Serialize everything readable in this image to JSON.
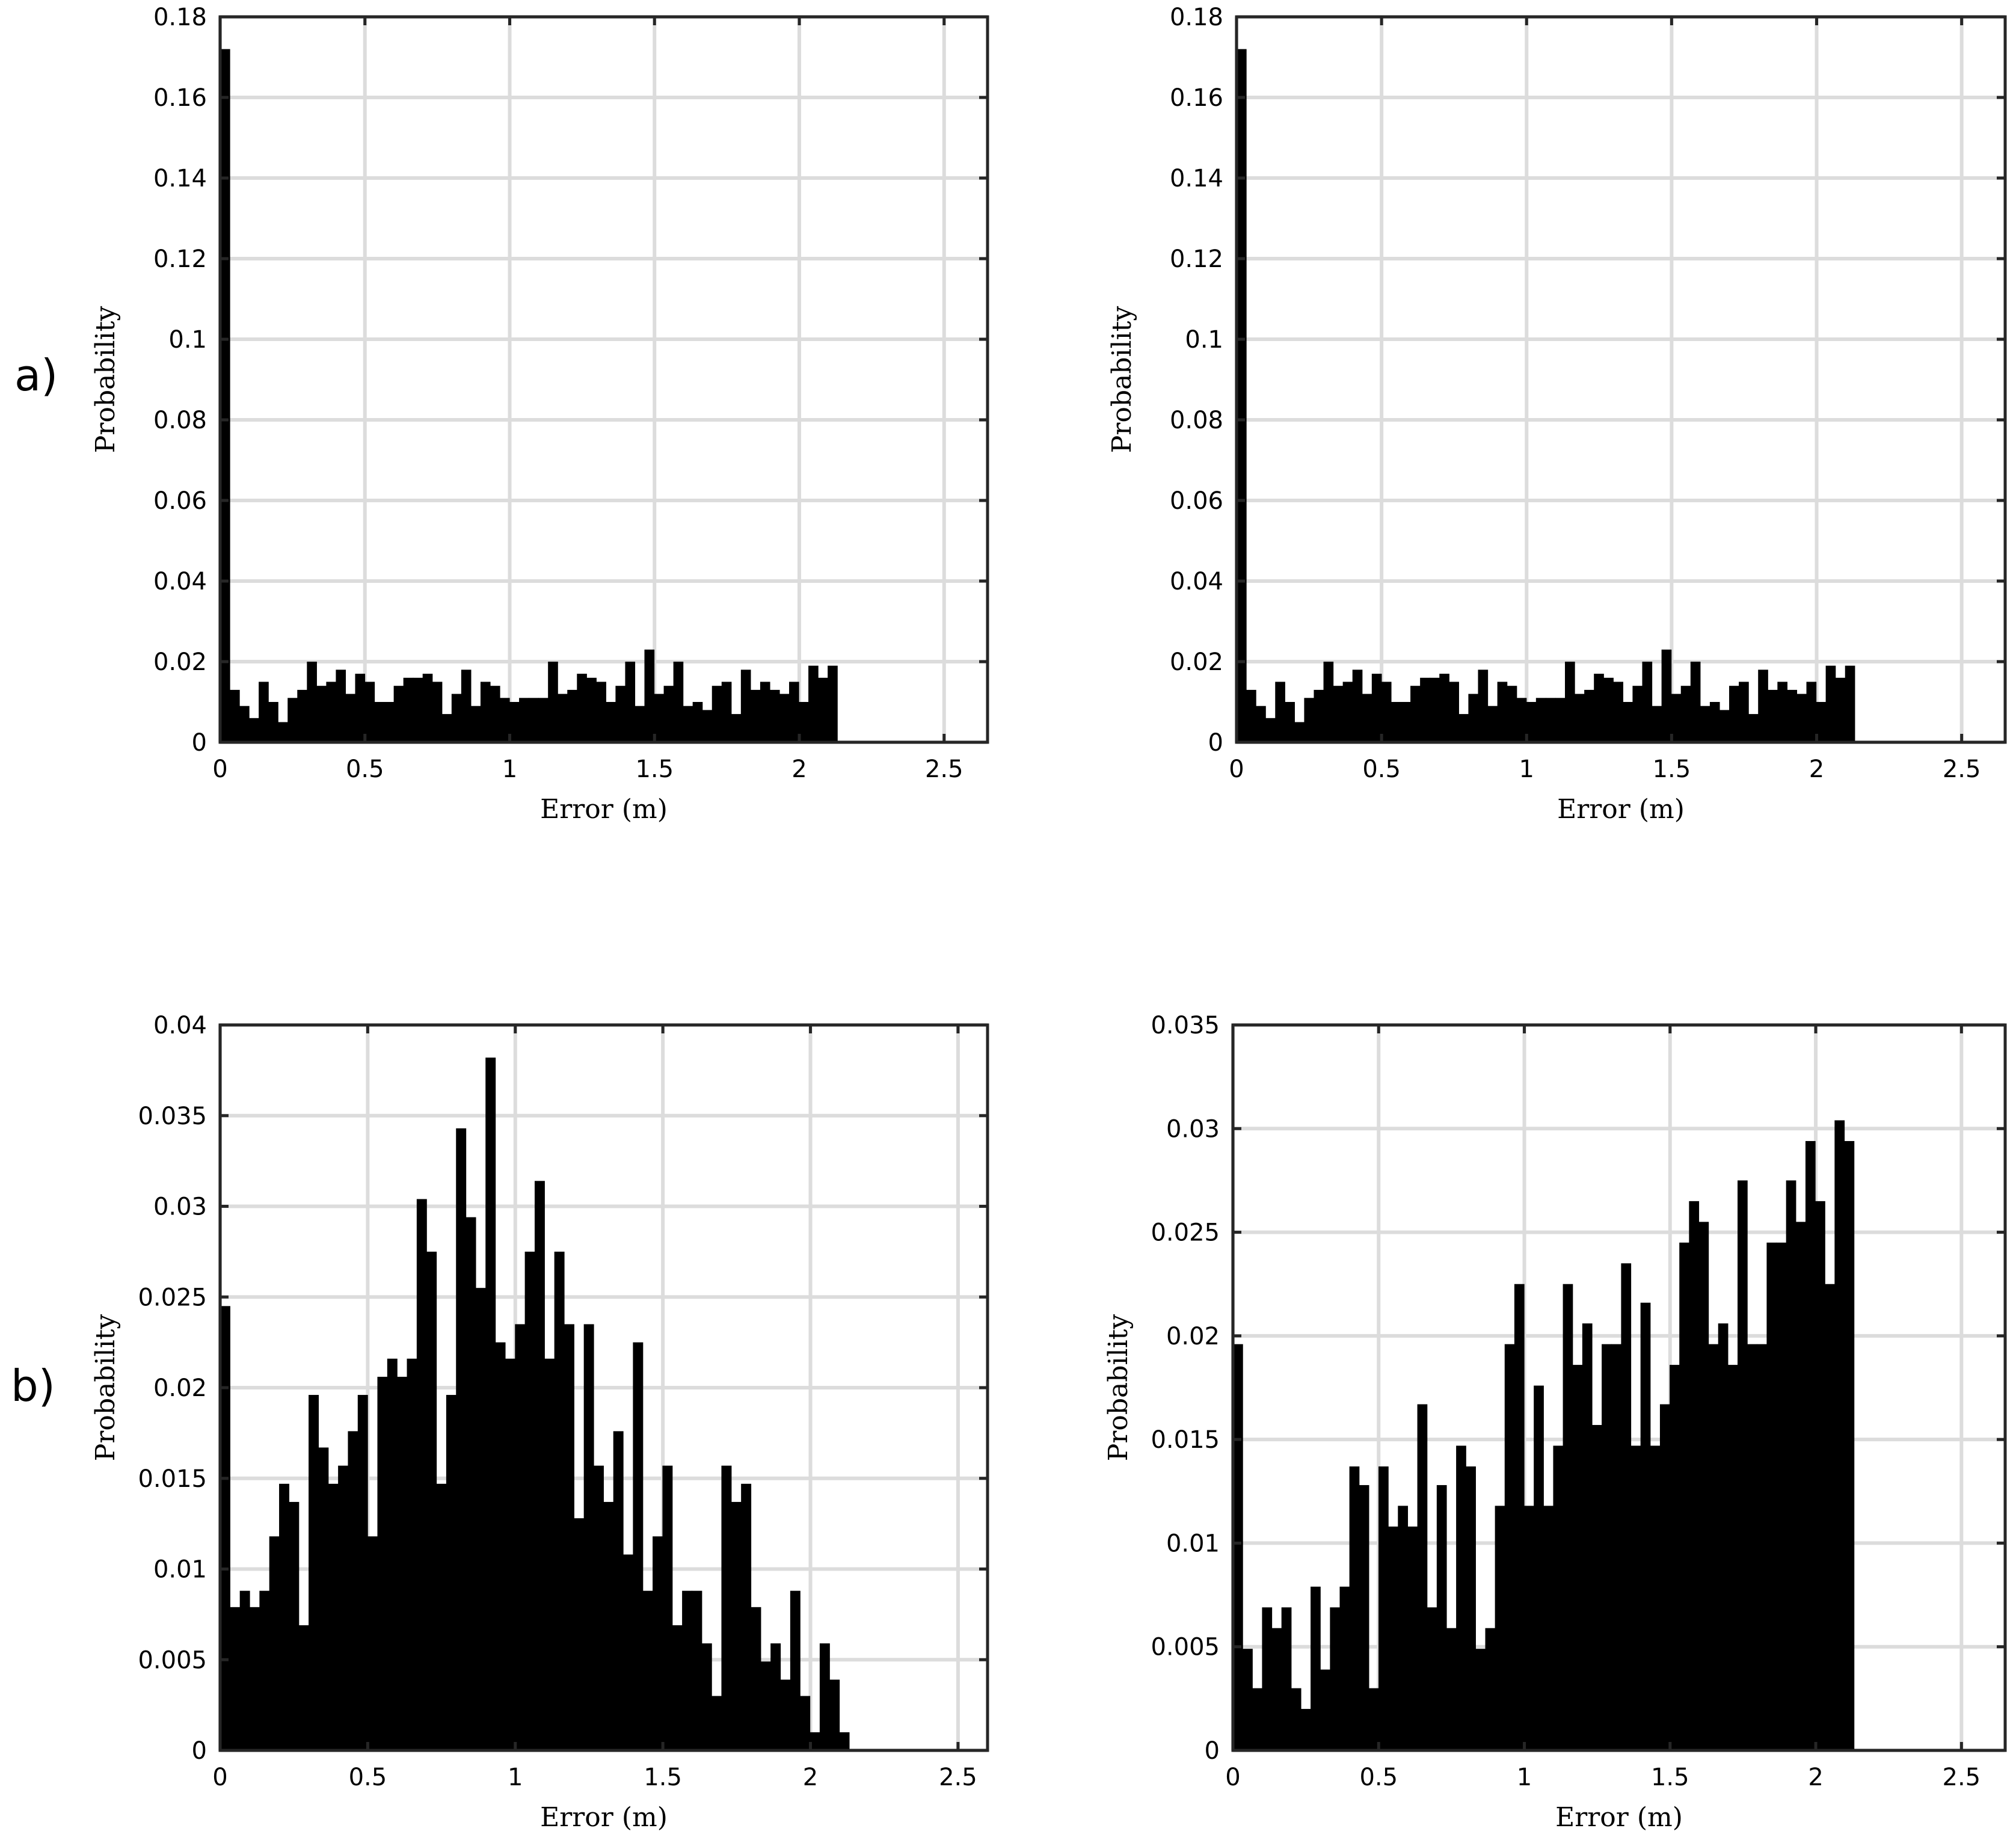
{
  "row_labels": [
    "a)",
    "b)"
  ],
  "chart_data": [
    {
      "type": "bar",
      "row": "a)",
      "column": "left",
      "xlabel": "Error (m)",
      "ylabel": "Probability",
      "xlim": [
        0,
        2.65
      ],
      "ylim": [
        0,
        0.18
      ],
      "xticks": [
        "0",
        "0.5",
        "1",
        "1.5",
        "2",
        "2.5"
      ],
      "yticks": [
        "0",
        "0.02",
        "0.04",
        "0.06",
        "0.08",
        "0.1",
        "0.12",
        "0.14",
        "0.16",
        "0.18"
      ],
      "bin_start": 0.0,
      "bin_width": 0.0333,
      "grid": true,
      "bar_color": "#000000",
      "values": [
        0.172,
        0.013,
        0.009,
        0.006,
        0.015,
        0.01,
        0.005,
        0.011,
        0.013,
        0.02,
        0.014,
        0.015,
        0.018,
        0.012,
        0.017,
        0.015,
        0.01,
        0.01,
        0.014,
        0.016,
        0.016,
        0.017,
        0.015,
        0.007,
        0.012,
        0.018,
        0.009,
        0.015,
        0.014,
        0.011,
        0.01,
        0.011,
        0.011,
        0.011,
        0.02,
        0.012,
        0.013,
        0.017,
        0.016,
        0.015,
        0.01,
        0.014,
        0.02,
        0.009,
        0.023,
        0.012,
        0.014,
        0.02,
        0.009,
        0.01,
        0.008,
        0.014,
        0.015,
        0.007,
        0.018,
        0.013,
        0.015,
        0.013,
        0.012,
        0.015,
        0.01,
        0.019,
        0.016,
        0.019
      ]
    },
    {
      "type": "bar",
      "row": "a)",
      "column": "right",
      "xlabel": "Error (m)",
      "ylabel": "Probability",
      "xlim": [
        0,
        2.65
      ],
      "ylim": [
        0,
        0.18
      ],
      "xticks": [
        "0",
        "0.5",
        "1",
        "1.5",
        "2",
        "2.5"
      ],
      "yticks": [
        "0",
        "0.02",
        "0.04",
        "0.06",
        "0.08",
        "0.1",
        "0.12",
        "0.14",
        "0.16",
        "0.18"
      ],
      "bin_start": 0.0,
      "bin_width": 0.0333,
      "grid": true,
      "bar_color": "#000000",
      "values": [
        0.172,
        0.013,
        0.009,
        0.006,
        0.015,
        0.01,
        0.005,
        0.011,
        0.013,
        0.02,
        0.014,
        0.015,
        0.018,
        0.012,
        0.017,
        0.015,
        0.01,
        0.01,
        0.014,
        0.016,
        0.016,
        0.017,
        0.015,
        0.007,
        0.012,
        0.018,
        0.009,
        0.015,
        0.014,
        0.011,
        0.01,
        0.011,
        0.011,
        0.011,
        0.02,
        0.012,
        0.013,
        0.017,
        0.016,
        0.015,
        0.01,
        0.014,
        0.02,
        0.009,
        0.023,
        0.012,
        0.014,
        0.02,
        0.009,
        0.01,
        0.008,
        0.014,
        0.015,
        0.007,
        0.018,
        0.013,
        0.015,
        0.013,
        0.012,
        0.015,
        0.01,
        0.019,
        0.016,
        0.019
      ]
    },
    {
      "type": "bar",
      "row": "b)",
      "column": "left",
      "xlabel": "Error (m)",
      "ylabel": "Probability",
      "xlim": [
        0,
        2.6
      ],
      "ylim": [
        0,
        0.04
      ],
      "xticks": [
        "0",
        "0.5",
        "1",
        "1.5",
        "2",
        "2.5"
      ],
      "yticks": [
        "0",
        "0.005",
        "0.01",
        "0.015",
        "0.02",
        "0.025",
        "0.03",
        "0.035",
        "0.04"
      ],
      "bin_start": 0.0,
      "bin_width": 0.0333,
      "grid": true,
      "bar_color": "#000000",
      "values": [
        0.0245,
        0.0079,
        0.0088,
        0.0079,
        0.0088,
        0.0118,
        0.0147,
        0.0137,
        0.0069,
        0.0196,
        0.0167,
        0.0147,
        0.0157,
        0.0176,
        0.0196,
        0.0118,
        0.0206,
        0.0216,
        0.0206,
        0.0216,
        0.0304,
        0.0275,
        0.0147,
        0.0196,
        0.0343,
        0.0294,
        0.0255,
        0.0382,
        0.0225,
        0.0216,
        0.0235,
        0.0275,
        0.0314,
        0.0216,
        0.0275,
        0.0235,
        0.0128,
        0.0235,
        0.0157,
        0.0137,
        0.0176,
        0.0108,
        0.0225,
        0.0088,
        0.0118,
        0.0157,
        0.0069,
        0.0088,
        0.0088,
        0.0059,
        0.003,
        0.0157,
        0.0137,
        0.0147,
        0.0079,
        0.0049,
        0.0059,
        0.0039,
        0.0088,
        0.003,
        0.001,
        0.0059,
        0.0039,
        0.001
      ]
    },
    {
      "type": "bar",
      "row": "b)",
      "column": "right",
      "xlabel": "Error (m)",
      "ylabel": "Probability",
      "xlim": [
        0,
        2.65
      ],
      "ylim": [
        0,
        0.035
      ],
      "xticks": [
        "0",
        "0.5",
        "1",
        "1.5",
        "2",
        "2.5"
      ],
      "yticks": [
        "0",
        "0.005",
        "0.01",
        "0.015",
        "0.02",
        "0.025",
        "0.03",
        "0.035"
      ],
      "bin_start": 0.0,
      "bin_width": 0.0333,
      "grid": true,
      "bar_color": "#000000",
      "values": [
        0.0196,
        0.0049,
        0.003,
        0.0069,
        0.0059,
        0.0069,
        0.003,
        0.002,
        0.0079,
        0.0039,
        0.0069,
        0.0079,
        0.0137,
        0.0128,
        0.003,
        0.0137,
        0.0108,
        0.0118,
        0.0108,
        0.0167,
        0.0069,
        0.0128,
        0.0059,
        0.0147,
        0.0137,
        0.0049,
        0.0059,
        0.0118,
        0.0196,
        0.0225,
        0.0118,
        0.0176,
        0.0118,
        0.0147,
        0.0225,
        0.0186,
        0.0206,
        0.0157,
        0.0196,
        0.0196,
        0.0235,
        0.0147,
        0.0216,
        0.0147,
        0.0167,
        0.0186,
        0.0245,
        0.0265,
        0.0255,
        0.0196,
        0.0206,
        0.0186,
        0.0275,
        0.0196,
        0.0196,
        0.0245,
        0.0245,
        0.0275,
        0.0255,
        0.0294,
        0.0265,
        0.0225,
        0.0304,
        0.0294
      ]
    }
  ]
}
